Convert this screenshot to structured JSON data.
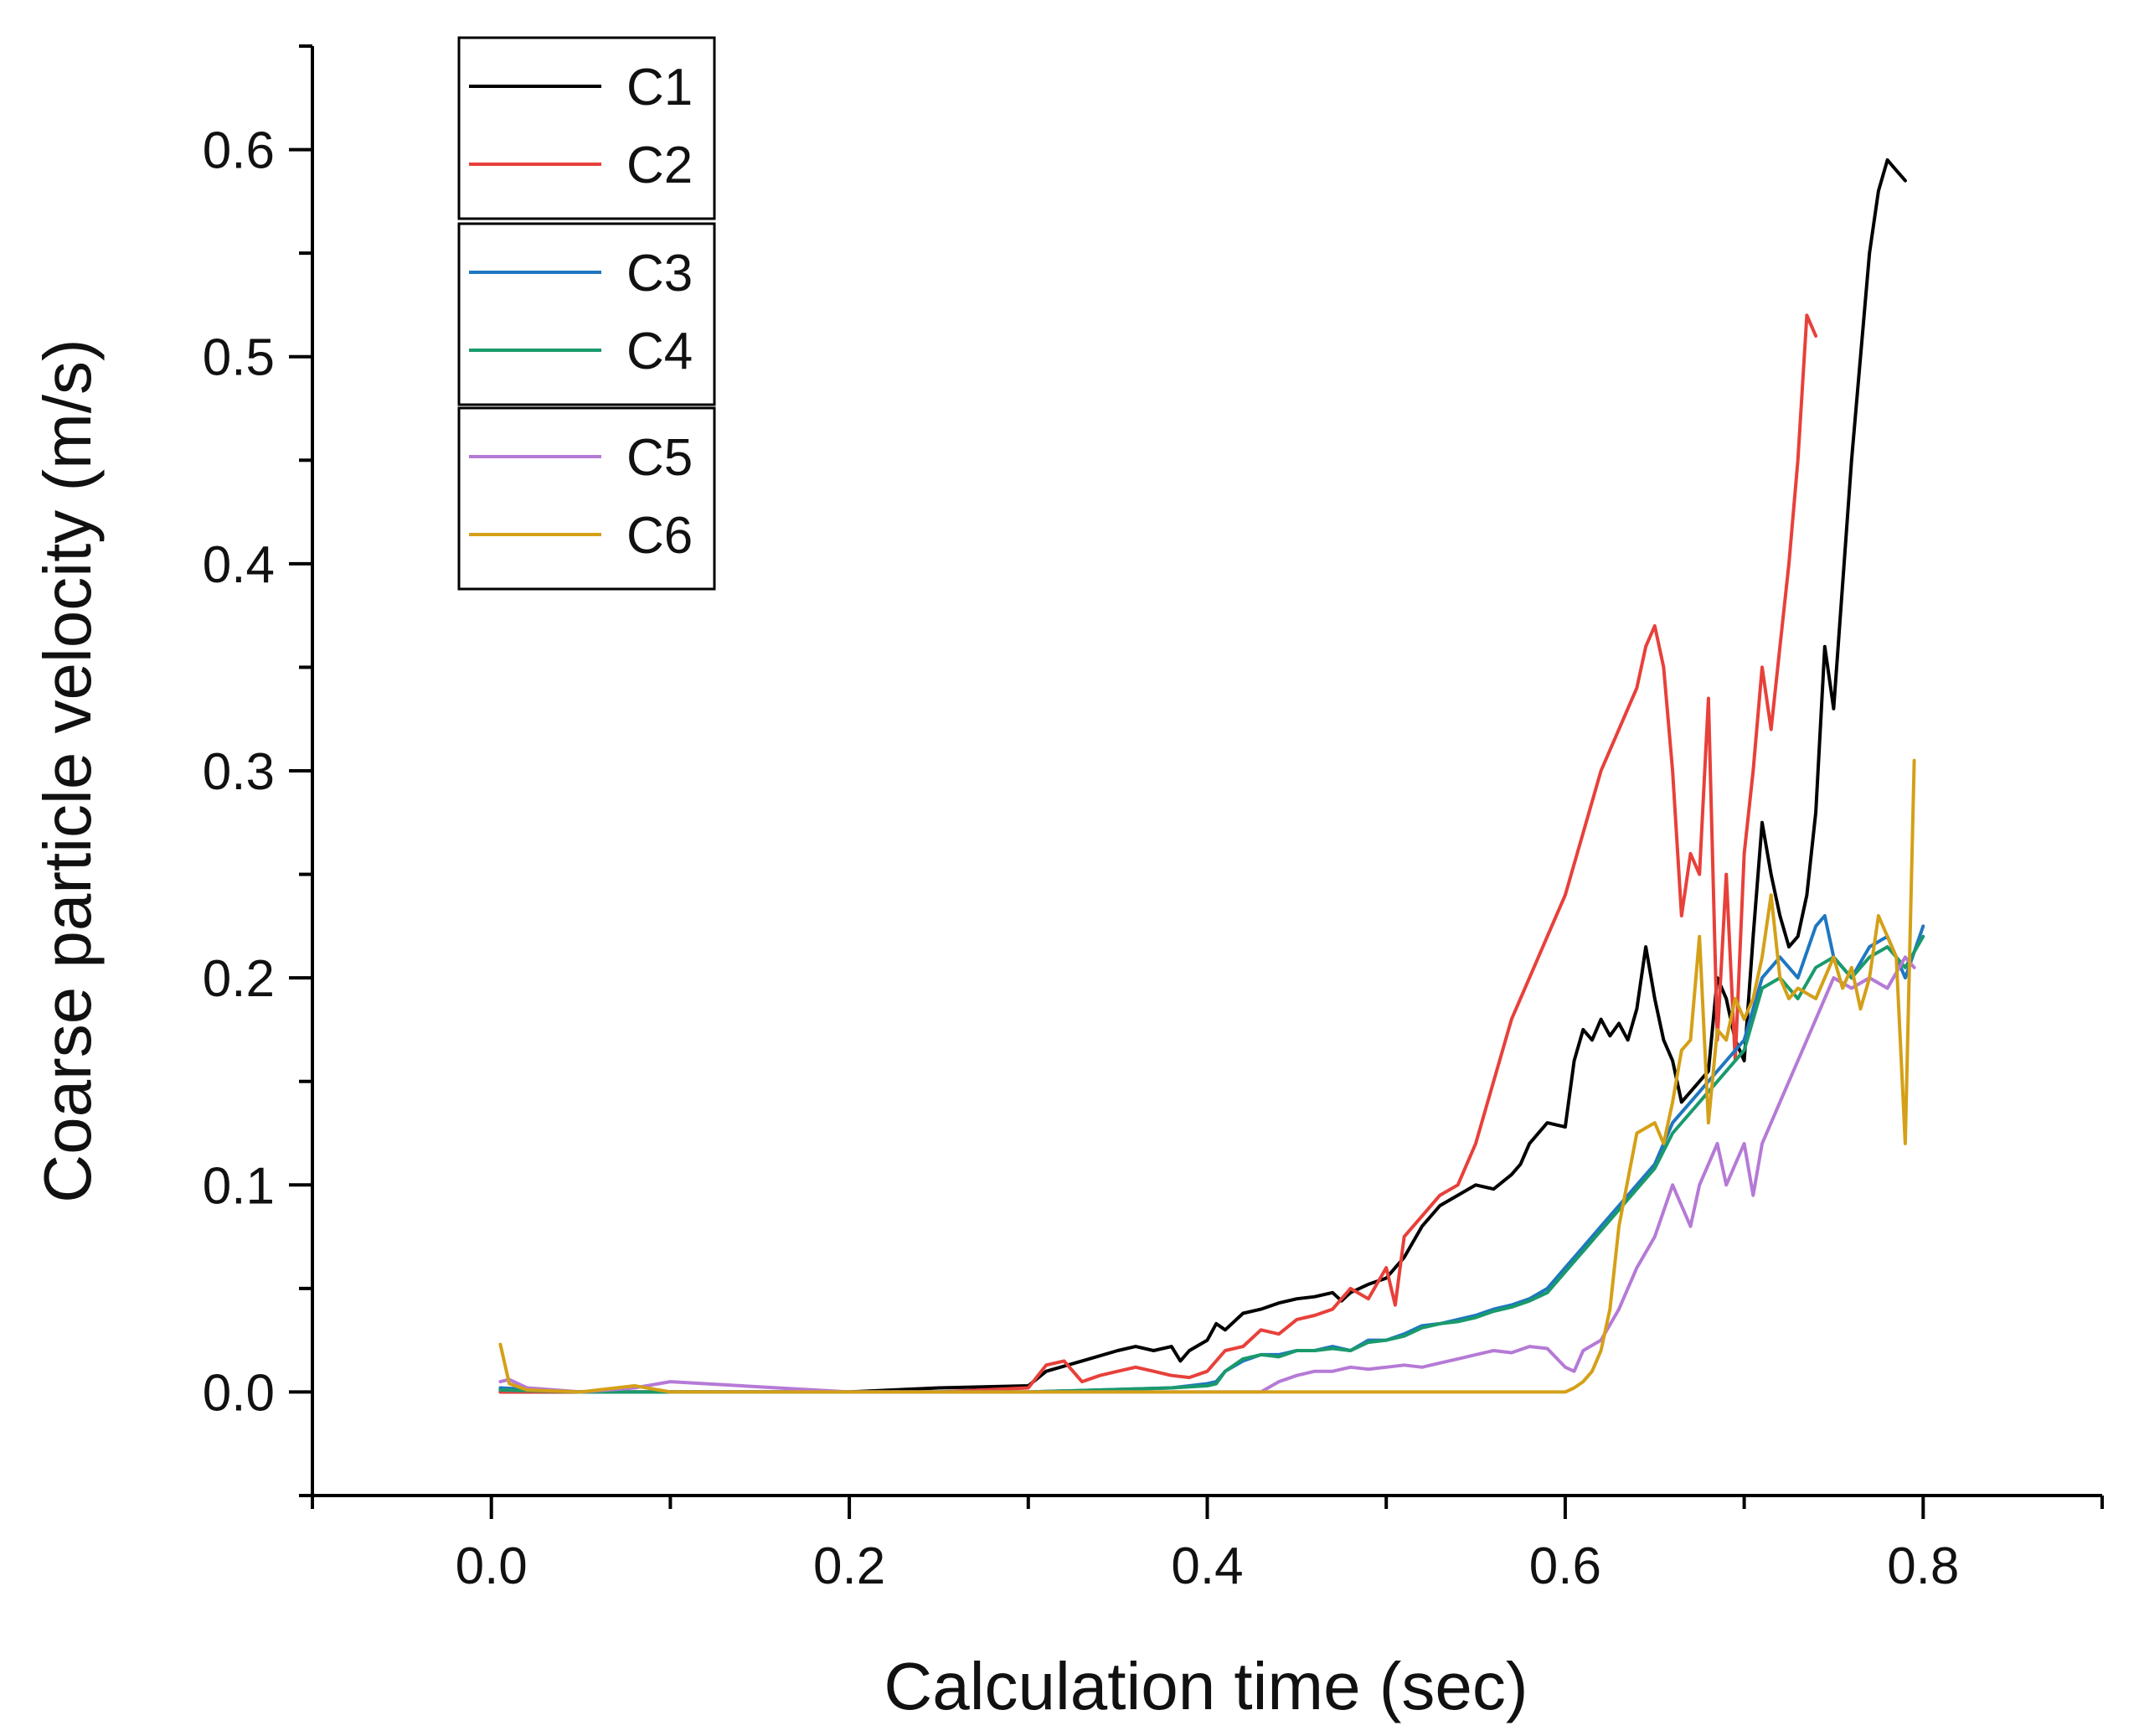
{
  "chart_data": {
    "type": "line",
    "title": "",
    "xlabel": "Calculation time (sec)",
    "ylabel": "Coarse particle velocity (m/s)",
    "xlim": [
      -0.1,
      0.9
    ],
    "ylim": [
      -0.05,
      0.65
    ],
    "xticks": [
      0.0,
      0.2,
      0.4,
      0.6,
      0.8
    ],
    "xtick_labels": [
      "0.0",
      "0.2",
      "0.4",
      "0.6",
      "0.8"
    ],
    "yticks": [
      0.0,
      0.1,
      0.2,
      0.3,
      0.4,
      0.5,
      0.6
    ],
    "ytick_labels": [
      "0.0",
      "0.1",
      "0.2",
      "0.3",
      "0.4",
      "0.5",
      "0.6"
    ],
    "grid": false,
    "legend_position": "top-left",
    "legend_groups": [
      [
        "C1",
        "C2"
      ],
      [
        "C3",
        "C4"
      ],
      [
        "C5",
        "C6"
      ]
    ],
    "series": [
      {
        "name": "C1",
        "color": "#000000",
        "x": [
          0.005,
          0.02,
          0.1,
          0.2,
          0.25,
          0.3,
          0.31,
          0.33,
          0.35,
          0.36,
          0.37,
          0.38,
          0.385,
          0.39,
          0.4,
          0.405,
          0.41,
          0.42,
          0.43,
          0.44,
          0.45,
          0.46,
          0.47,
          0.475,
          0.48,
          0.49,
          0.5,
          0.505,
          0.51,
          0.52,
          0.53,
          0.54,
          0.55,
          0.56,
          0.57,
          0.575,
          0.58,
          0.59,
          0.6,
          0.605,
          0.61,
          0.615,
          0.62,
          0.625,
          0.63,
          0.635,
          0.64,
          0.645,
          0.65,
          0.655,
          0.66,
          0.665,
          0.67,
          0.675,
          0.68,
          0.685,
          0.69,
          0.695,
          0.7,
          0.705,
          0.71,
          0.715,
          0.72,
          0.725,
          0.73,
          0.735,
          0.74,
          0.745,
          0.75,
          0.76,
          0.77,
          0.775,
          0.78,
          0.785,
          0.79
        ],
        "values": [
          0.0,
          0.0,
          0.0,
          0.0,
          0.002,
          0.003,
          0.01,
          0.015,
          0.02,
          0.022,
          0.02,
          0.022,
          0.015,
          0.02,
          0.025,
          0.033,
          0.03,
          0.038,
          0.04,
          0.043,
          0.045,
          0.046,
          0.048,
          0.044,
          0.048,
          0.052,
          0.055,
          0.06,
          0.065,
          0.08,
          0.09,
          0.095,
          0.1,
          0.098,
          0.105,
          0.11,
          0.12,
          0.13,
          0.128,
          0.16,
          0.175,
          0.17,
          0.18,
          0.172,
          0.178,
          0.17,
          0.185,
          0.215,
          0.19,
          0.17,
          0.16,
          0.14,
          0.145,
          0.15,
          0.155,
          0.2,
          0.19,
          0.17,
          0.16,
          0.22,
          0.275,
          0.25,
          0.23,
          0.215,
          0.22,
          0.24,
          0.28,
          0.36,
          0.33,
          0.45,
          0.55,
          0.58,
          0.595,
          0.59,
          0.585
        ]
      },
      {
        "name": "C2",
        "color": "#e8403a",
        "x": [
          0.005,
          0.02,
          0.1,
          0.2,
          0.25,
          0.3,
          0.31,
          0.32,
          0.33,
          0.34,
          0.35,
          0.36,
          0.37,
          0.38,
          0.39,
          0.4,
          0.41,
          0.42,
          0.43,
          0.44,
          0.45,
          0.46,
          0.47,
          0.48,
          0.49,
          0.5,
          0.505,
          0.51,
          0.52,
          0.53,
          0.54,
          0.55,
          0.56,
          0.57,
          0.58,
          0.59,
          0.6,
          0.61,
          0.62,
          0.63,
          0.64,
          0.645,
          0.65,
          0.655,
          0.66,
          0.665,
          0.67,
          0.675,
          0.68,
          0.685,
          0.69,
          0.695,
          0.7,
          0.705,
          0.71,
          0.715,
          0.72,
          0.725,
          0.73,
          0.735,
          0.74
        ],
        "values": [
          0.0,
          0.0,
          0.0,
          0.0,
          0.0,
          0.002,
          0.013,
          0.015,
          0.005,
          0.008,
          0.01,
          0.012,
          0.01,
          0.008,
          0.007,
          0.01,
          0.02,
          0.022,
          0.03,
          0.028,
          0.035,
          0.037,
          0.04,
          0.05,
          0.045,
          0.06,
          0.042,
          0.075,
          0.085,
          0.095,
          0.1,
          0.12,
          0.15,
          0.18,
          0.2,
          0.22,
          0.24,
          0.27,
          0.3,
          0.32,
          0.34,
          0.36,
          0.37,
          0.35,
          0.3,
          0.23,
          0.26,
          0.25,
          0.335,
          0.17,
          0.25,
          0.16,
          0.26,
          0.3,
          0.35,
          0.32,
          0.36,
          0.4,
          0.45,
          0.52,
          0.51
        ]
      },
      {
        "name": "C3",
        "color": "#1f77c0",
        "x": [
          0.005,
          0.05,
          0.1,
          0.2,
          0.3,
          0.38,
          0.4,
          0.405,
          0.41,
          0.42,
          0.43,
          0.44,
          0.45,
          0.46,
          0.47,
          0.48,
          0.49,
          0.5,
          0.51,
          0.52,
          0.53,
          0.54,
          0.55,
          0.56,
          0.57,
          0.58,
          0.59,
          0.6,
          0.61,
          0.62,
          0.63,
          0.64,
          0.65,
          0.66,
          0.67,
          0.68,
          0.69,
          0.7,
          0.71,
          0.72,
          0.73,
          0.74,
          0.745,
          0.75,
          0.76,
          0.77,
          0.78,
          0.79,
          0.8
        ],
        "values": [
          0.002,
          0.0,
          0.0,
          0.0,
          0.0,
          0.002,
          0.004,
          0.005,
          0.01,
          0.015,
          0.018,
          0.018,
          0.02,
          0.02,
          0.022,
          0.02,
          0.025,
          0.025,
          0.028,
          0.032,
          0.033,
          0.035,
          0.037,
          0.04,
          0.042,
          0.045,
          0.05,
          0.06,
          0.07,
          0.08,
          0.09,
          0.1,
          0.11,
          0.13,
          0.14,
          0.15,
          0.16,
          0.17,
          0.2,
          0.21,
          0.2,
          0.225,
          0.23,
          0.21,
          0.2,
          0.215,
          0.22,
          0.2,
          0.225
        ]
      },
      {
        "name": "C4",
        "color": "#1a9a6c",
        "x": [
          0.005,
          0.05,
          0.1,
          0.2,
          0.3,
          0.38,
          0.4,
          0.405,
          0.41,
          0.42,
          0.43,
          0.44,
          0.45,
          0.46,
          0.47,
          0.48,
          0.49,
          0.5,
          0.51,
          0.52,
          0.53,
          0.54,
          0.55,
          0.56,
          0.57,
          0.58,
          0.59,
          0.6,
          0.61,
          0.62,
          0.63,
          0.64,
          0.65,
          0.66,
          0.67,
          0.68,
          0.69,
          0.7,
          0.71,
          0.72,
          0.73,
          0.74,
          0.75,
          0.76,
          0.77,
          0.78,
          0.79,
          0.8
        ],
        "values": [
          0.001,
          0.0,
          0.0,
          0.0,
          0.0,
          0.002,
          0.003,
          0.004,
          0.01,
          0.016,
          0.018,
          0.017,
          0.02,
          0.02,
          0.021,
          0.02,
          0.024,
          0.025,
          0.027,
          0.031,
          0.033,
          0.034,
          0.036,
          0.039,
          0.041,
          0.044,
          0.048,
          0.058,
          0.068,
          0.078,
          0.088,
          0.098,
          0.108,
          0.125,
          0.135,
          0.145,
          0.155,
          0.165,
          0.195,
          0.2,
          0.19,
          0.205,
          0.21,
          0.2,
          0.21,
          0.215,
          0.205,
          0.22
        ]
      },
      {
        "name": "C5",
        "color": "#b57ad6",
        "x": [
          0.005,
          0.01,
          0.02,
          0.05,
          0.08,
          0.1,
          0.2,
          0.3,
          0.4,
          0.43,
          0.44,
          0.45,
          0.46,
          0.47,
          0.48,
          0.49,
          0.5,
          0.51,
          0.52,
          0.53,
          0.54,
          0.55,
          0.56,
          0.57,
          0.58,
          0.59,
          0.6,
          0.605,
          0.61,
          0.62,
          0.63,
          0.64,
          0.65,
          0.66,
          0.665,
          0.67,
          0.675,
          0.68,
          0.685,
          0.69,
          0.695,
          0.7,
          0.705,
          0.71,
          0.72,
          0.73,
          0.74,
          0.75,
          0.76,
          0.77,
          0.78,
          0.79,
          0.795
        ],
        "values": [
          0.005,
          0.006,
          0.002,
          0.0,
          0.002,
          0.005,
          0.0,
          0.0,
          0.0,
          0.0,
          0.005,
          0.008,
          0.01,
          0.01,
          0.012,
          0.011,
          0.012,
          0.013,
          0.012,
          0.014,
          0.016,
          0.018,
          0.02,
          0.019,
          0.022,
          0.021,
          0.012,
          0.01,
          0.02,
          0.025,
          0.04,
          0.06,
          0.075,
          0.1,
          0.09,
          0.08,
          0.1,
          0.11,
          0.12,
          0.1,
          0.11,
          0.12,
          0.095,
          0.12,
          0.14,
          0.16,
          0.18,
          0.2,
          0.195,
          0.2,
          0.195,
          0.21,
          0.205
        ]
      },
      {
        "name": "C6",
        "color": "#d4a017",
        "x": [
          0.005,
          0.01,
          0.02,
          0.05,
          0.08,
          0.1,
          0.2,
          0.3,
          0.4,
          0.5,
          0.55,
          0.59,
          0.6,
          0.605,
          0.61,
          0.615,
          0.62,
          0.625,
          0.63,
          0.64,
          0.65,
          0.655,
          0.66,
          0.665,
          0.67,
          0.675,
          0.68,
          0.685,
          0.69,
          0.695,
          0.7,
          0.705,
          0.71,
          0.715,
          0.72,
          0.725,
          0.73,
          0.74,
          0.75,
          0.755,
          0.76,
          0.765,
          0.77,
          0.775,
          0.78,
          0.785,
          0.79,
          0.795
        ],
        "values": [
          0.023,
          0.004,
          0.001,
          0.0,
          0.003,
          0.0,
          0.0,
          0.0,
          0.0,
          0.0,
          0.0,
          0.0,
          0.0,
          0.002,
          0.005,
          0.01,
          0.02,
          0.04,
          0.08,
          0.125,
          0.13,
          0.12,
          0.14,
          0.165,
          0.17,
          0.22,
          0.13,
          0.175,
          0.17,
          0.19,
          0.18,
          0.19,
          0.21,
          0.24,
          0.2,
          0.19,
          0.195,
          0.19,
          0.21,
          0.195,
          0.205,
          0.185,
          0.2,
          0.23,
          0.22,
          0.21,
          0.12,
          0.305
        ]
      }
    ]
  }
}
